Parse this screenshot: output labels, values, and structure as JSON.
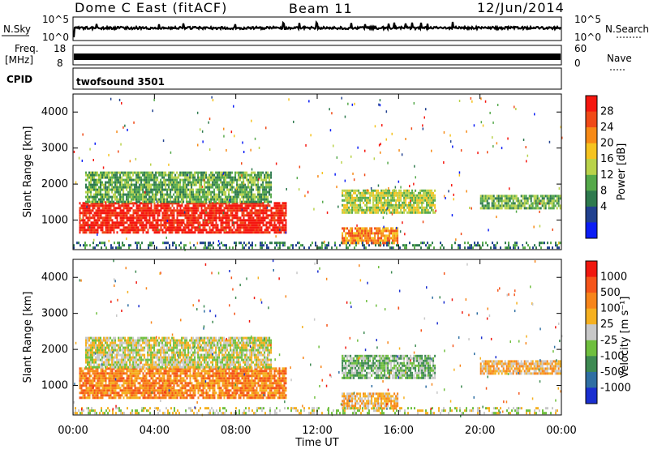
{
  "header": {
    "station": "Dome C East (fitACF)",
    "beam": "Beam 11",
    "date": "12/Jun/2014"
  },
  "top_panels": {
    "nsky_label": "N.Sky",
    "nsky_ticks": [
      "10^5",
      "10^0"
    ],
    "nsearch_label": "N.Search",
    "nsearch_ticks": [
      "10^5",
      "10^0"
    ],
    "freq_label_1": "Freq.",
    "freq_label_2": "[MHz]",
    "freq_ticks": [
      "18",
      "8"
    ],
    "nave_label": "Nave",
    "nave_ticks": [
      "60",
      "0"
    ],
    "cpid_label": "CPID",
    "cpid_value": "twofsound 3501"
  },
  "chart_data": [
    {
      "type": "heatmap",
      "name": "power",
      "ylabel": "Slant Range [km]",
      "yticks": [
        "4000",
        "3000",
        "2000",
        "1000"
      ],
      "ylim": [
        180,
        4500
      ],
      "xlim": [
        0,
        24
      ],
      "xticks": [
        "00:00",
        "04:00",
        "08:00",
        "12:00",
        "16:00",
        "20:00",
        "00:00"
      ],
      "colorbar_label": "Power [dB]",
      "colorbar_ticks": [
        "28",
        "24",
        "20",
        "16",
        "12",
        "8",
        "4"
      ],
      "colors": [
        "#0b1df5",
        "#21418f",
        "#2e7a4e",
        "#55a94a",
        "#b9d24a",
        "#f5c31f",
        "#f78a16",
        "#f04a17",
        "#f5170f"
      ],
      "regions": [
        {
          "t0": 0.3,
          "t1": 10.5,
          "r0": 600,
          "r1": 1500,
          "level": 8
        },
        {
          "t0": 0.6,
          "t1": 9.8,
          "r0": 1500,
          "r1": 2350,
          "level": 3
        },
        {
          "t0": 13.2,
          "t1": 17.8,
          "r0": 1200,
          "r1": 1850,
          "level": 4
        },
        {
          "t0": 13.2,
          "t1": 16.0,
          "r0": 300,
          "r1": 800,
          "level": 6
        },
        {
          "t0": 20.0,
          "t1": 24.0,
          "r0": 1300,
          "r1": 1700,
          "level": 3
        },
        {
          "t0": 0.0,
          "t1": 24.0,
          "r0": 180,
          "r1": 400,
          "level": 2
        }
      ]
    },
    {
      "type": "heatmap",
      "name": "velocity",
      "ylabel": "Slant Range [km]",
      "yticks": [
        "4000",
        "3000",
        "2000",
        "1000"
      ],
      "ylim": [
        180,
        4500
      ],
      "xlim": [
        0,
        24
      ],
      "xticks": [
        "00:00",
        "04:00",
        "08:00",
        "12:00",
        "16:00",
        "20:00",
        "00:00"
      ],
      "xlabel": "Time UT",
      "colorbar_label": "Velocity [m s⁻¹]",
      "colorbar_ticks": [
        "1000",
        "500",
        "100",
        "25",
        "-25",
        "-100",
        "-500",
        "-1000"
      ],
      "colors": [
        "#1a2fd0",
        "#2f6fa3",
        "#3e8a52",
        "#6fbf3e",
        "#c8c8c8",
        "#f5b020",
        "#f7851a",
        "#f5551a",
        "#f0180f"
      ],
      "regions": [
        {
          "t0": 0.3,
          "t1": 10.5,
          "r0": 600,
          "r1": 1500,
          "level": 6
        },
        {
          "t0": 0.6,
          "t1": 9.8,
          "r0": 1500,
          "r1": 2350,
          "level": 4
        },
        {
          "t0": 13.2,
          "t1": 17.8,
          "r0": 1200,
          "r1": 1850,
          "level": 3
        },
        {
          "t0": 13.2,
          "t1": 16.0,
          "r0": 300,
          "r1": 800,
          "level": 5
        },
        {
          "t0": 20.0,
          "t1": 24.0,
          "r0": 1300,
          "r1": 1700,
          "level": 5
        },
        {
          "t0": 0.0,
          "t1": 24.0,
          "r0": 180,
          "r1": 400,
          "level": 4
        }
      ]
    }
  ]
}
